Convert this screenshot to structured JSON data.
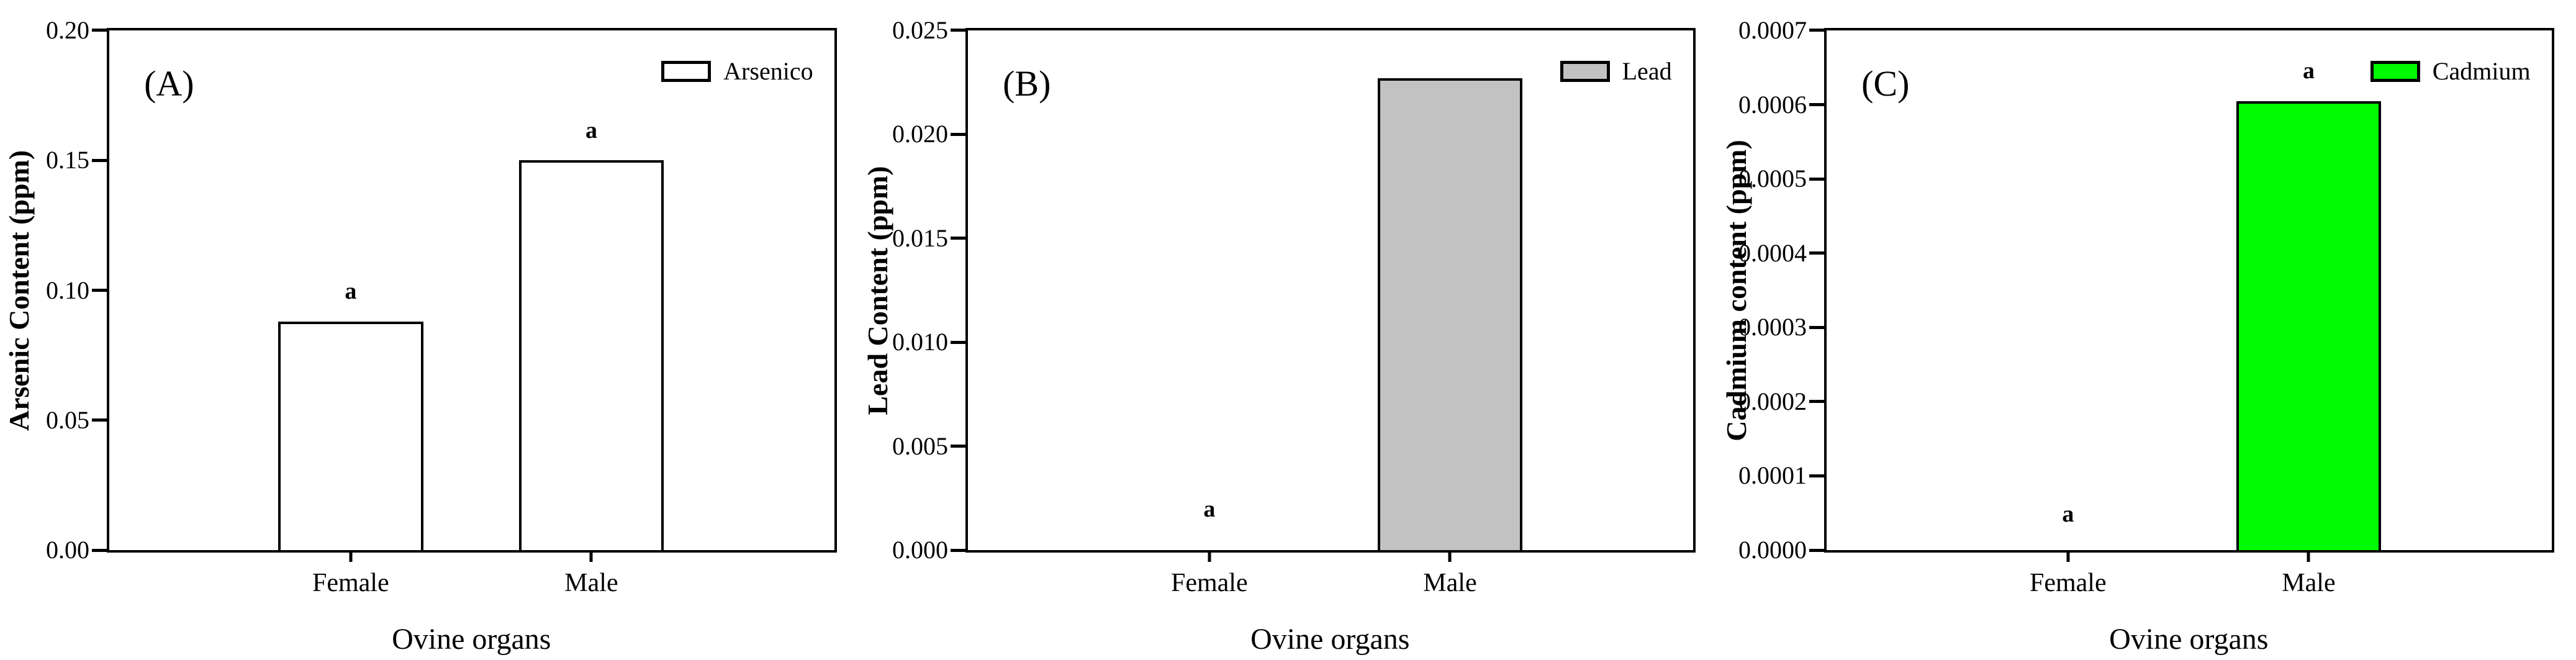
{
  "figure": {
    "xlabel": "Ovine organs",
    "categories": [
      "Female",
      "Male"
    ],
    "frame_color": "#000000",
    "background": "#ffffff"
  },
  "chart_data": [
    {
      "type": "bar",
      "panel_label": "(A)",
      "ylabel": "Arsenic Content (ppm)",
      "xlabel": "Ovine organs",
      "categories": [
        "Female",
        "Male"
      ],
      "values": [
        0.088,
        0.15
      ],
      "ylim": [
        0,
        0.2
      ],
      "yticks": [
        "0.00",
        "0.05",
        "0.10",
        "0.15",
        "0.20"
      ],
      "bar_fill": "#ffffff",
      "legend": {
        "label": "Arsenico",
        "position": "top-right"
      },
      "annotations": [
        {
          "text": "a",
          "category": "Female",
          "y": 0.095
        },
        {
          "text": "a",
          "category": "Male",
          "y": 0.157
        }
      ],
      "grid": false
    },
    {
      "type": "bar",
      "panel_label": "(B)",
      "ylabel": "Lead Content (ppm)",
      "xlabel": "Ovine organs",
      "categories": [
        "Female",
        "Male"
      ],
      "values": [
        0,
        0.0227
      ],
      "ylim": [
        0,
        0.025
      ],
      "yticks": [
        "0.000",
        "0.005",
        "0.010",
        "0.015",
        "0.020",
        "0.025"
      ],
      "bar_fill": "#c2c2c2",
      "legend": {
        "label": "Lead",
        "position": "top-right"
      },
      "annotations": [
        {
          "text": "a",
          "category": "Female",
          "y": 0.0014
        }
      ],
      "grid": false
    },
    {
      "type": "bar",
      "panel_label": "(C)",
      "ylabel": "Cadmium content (ppm)",
      "xlabel": "Ovine organs",
      "categories": [
        "Female",
        "Male"
      ],
      "values": [
        0,
        0.000605
      ],
      "ylim": [
        0,
        0.0007
      ],
      "yticks": [
        "0.0000",
        "0.0001",
        "0.0002",
        "0.0003",
        "0.0004",
        "0.0005",
        "0.0006",
        "0.0007"
      ],
      "bar_fill": "#00fa00",
      "legend": {
        "label": "Cadmium",
        "position": "top-right"
      },
      "annotations": [
        {
          "text": "a",
          "category": "Female",
          "y": 3.3e-05
        },
        {
          "text": "a",
          "category": "Male",
          "y": 0.00063
        }
      ],
      "grid": false
    }
  ]
}
